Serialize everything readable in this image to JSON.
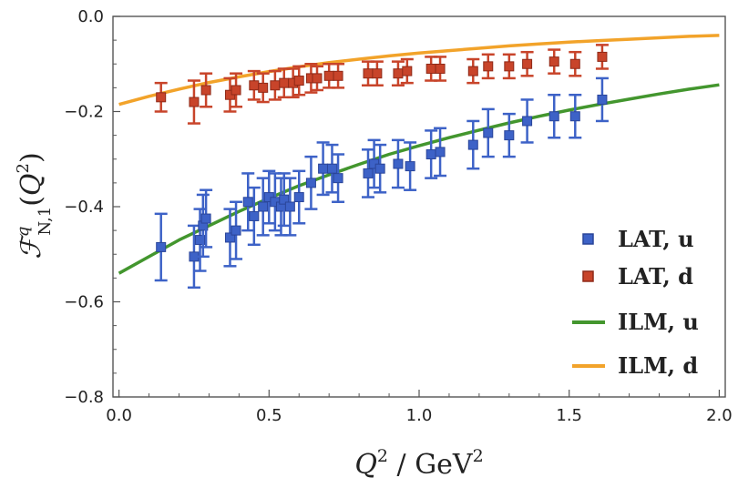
{
  "chart_data": {
    "type": "scatter",
    "xlabel": {
      "var": "Q",
      "sup": "2",
      "unit": " / GeV",
      "unit_sup": "2"
    },
    "ylabel": {
      "F": "ℱ",
      "sup": "q",
      "sub": "N,1",
      "arg_open": "(",
      "arg_var": "Q",
      "arg_sup": "2",
      "arg_close": ")"
    },
    "xlim": [
      -0.02,
      2.02
    ],
    "ylim": [
      -0.8,
      0.0
    ],
    "xticks": [
      0.0,
      0.5,
      1.0,
      1.5,
      2.0
    ],
    "xtick_labels": [
      "0.0",
      "0.5",
      "1.0",
      "1.5",
      "2.0"
    ],
    "yticks": [
      0.0,
      -0.2,
      -0.4,
      -0.6,
      -0.8
    ],
    "ytick_labels": [
      "0.0",
      "−0.2",
      "−0.4",
      "−0.6",
      "−0.8"
    ],
    "legend_position": "bottom-right",
    "series": [
      {
        "name": "LAT, u",
        "kind": "points",
        "color": "#3d62c7",
        "edge": "#2a4599",
        "points": [
          [
            0.14,
            -0.485,
            0.07
          ],
          [
            0.25,
            -0.505,
            0.065
          ],
          [
            0.27,
            -0.47,
            0.065
          ],
          [
            0.28,
            -0.44,
            0.065
          ],
          [
            0.29,
            -0.425,
            0.06
          ],
          [
            0.37,
            -0.465,
            0.06
          ],
          [
            0.39,
            -0.45,
            0.06
          ],
          [
            0.43,
            -0.39,
            0.06
          ],
          [
            0.45,
            -0.42,
            0.06
          ],
          [
            0.48,
            -0.4,
            0.06
          ],
          [
            0.5,
            -0.38,
            0.055
          ],
          [
            0.52,
            -0.39,
            0.06
          ],
          [
            0.54,
            -0.4,
            0.06
          ],
          [
            0.55,
            -0.385,
            0.055
          ],
          [
            0.57,
            -0.4,
            0.06
          ],
          [
            0.6,
            -0.38,
            0.055
          ],
          [
            0.64,
            -0.35,
            0.055
          ],
          [
            0.68,
            -0.32,
            0.055
          ],
          [
            0.71,
            -0.32,
            0.05
          ],
          [
            0.73,
            -0.34,
            0.05
          ],
          [
            0.83,
            -0.33,
            0.05
          ],
          [
            0.85,
            -0.31,
            0.05
          ],
          [
            0.87,
            -0.32,
            0.05
          ],
          [
            0.93,
            -0.31,
            0.05
          ],
          [
            0.97,
            -0.315,
            0.05
          ],
          [
            1.04,
            -0.29,
            0.05
          ],
          [
            1.07,
            -0.285,
            0.05
          ],
          [
            1.18,
            -0.27,
            0.05
          ],
          [
            1.23,
            -0.245,
            0.05
          ],
          [
            1.3,
            -0.25,
            0.045
          ],
          [
            1.36,
            -0.22,
            0.045
          ],
          [
            1.45,
            -0.21,
            0.045
          ],
          [
            1.52,
            -0.21,
            0.045
          ],
          [
            1.61,
            -0.175,
            0.045
          ]
        ]
      },
      {
        "name": "LAT, d",
        "kind": "points",
        "color": "#c8442a",
        "edge": "#8f2a18",
        "points": [
          [
            0.14,
            -0.17,
            0.03
          ],
          [
            0.25,
            -0.18,
            0.045
          ],
          [
            0.29,
            -0.155,
            0.035
          ],
          [
            0.37,
            -0.165,
            0.035
          ],
          [
            0.39,
            -0.155,
            0.035
          ],
          [
            0.45,
            -0.145,
            0.03
          ],
          [
            0.48,
            -0.15,
            0.03
          ],
          [
            0.52,
            -0.145,
            0.03
          ],
          [
            0.55,
            -0.14,
            0.03
          ],
          [
            0.58,
            -0.14,
            0.03
          ],
          [
            0.6,
            -0.135,
            0.03
          ],
          [
            0.64,
            -0.13,
            0.03
          ],
          [
            0.66,
            -0.13,
            0.025
          ],
          [
            0.7,
            -0.125,
            0.025
          ],
          [
            0.73,
            -0.125,
            0.025
          ],
          [
            0.83,
            -0.12,
            0.025
          ],
          [
            0.86,
            -0.12,
            0.025
          ],
          [
            0.93,
            -0.12,
            0.025
          ],
          [
            0.96,
            -0.115,
            0.025
          ],
          [
            1.04,
            -0.11,
            0.025
          ],
          [
            1.07,
            -0.11,
            0.025
          ],
          [
            1.18,
            -0.115,
            0.025
          ],
          [
            1.23,
            -0.105,
            0.025
          ],
          [
            1.3,
            -0.105,
            0.025
          ],
          [
            1.36,
            -0.1,
            0.025
          ],
          [
            1.45,
            -0.095,
            0.025
          ],
          [
            1.52,
            -0.1,
            0.025
          ],
          [
            1.61,
            -0.085,
            0.025
          ]
        ]
      },
      {
        "name": "ILM, u",
        "kind": "line",
        "color": "#43962e",
        "x": [
          0.0,
          0.1,
          0.2,
          0.3,
          0.4,
          0.5,
          0.6,
          0.7,
          0.8,
          0.9,
          1.0,
          1.1,
          1.2,
          1.3,
          1.4,
          1.5,
          1.6,
          1.7,
          1.8,
          1.9,
          2.0
        ],
        "y": [
          -0.54,
          -0.505,
          -0.47,
          -0.44,
          -0.41,
          -0.382,
          -0.356,
          -0.333,
          -0.311,
          -0.29,
          -0.272,
          -0.255,
          -0.239,
          -0.224,
          -0.21,
          -0.197,
          -0.185,
          -0.174,
          -0.163,
          -0.153,
          -0.144
        ]
      },
      {
        "name": "ILM, d",
        "kind": "line",
        "color": "#f2a32a",
        "x": [
          0.0,
          0.1,
          0.2,
          0.3,
          0.4,
          0.5,
          0.6,
          0.7,
          0.8,
          0.9,
          1.0,
          1.1,
          1.2,
          1.3,
          1.4,
          1.5,
          1.6,
          1.7,
          1.8,
          1.9,
          2.0
        ],
        "y": [
          -0.185,
          -0.168,
          -0.153,
          -0.139,
          -0.127,
          -0.116,
          -0.106,
          -0.097,
          -0.09,
          -0.083,
          -0.077,
          -0.072,
          -0.067,
          -0.062,
          -0.058,
          -0.054,
          -0.051,
          -0.048,
          -0.045,
          -0.042,
          -0.04
        ]
      }
    ]
  }
}
